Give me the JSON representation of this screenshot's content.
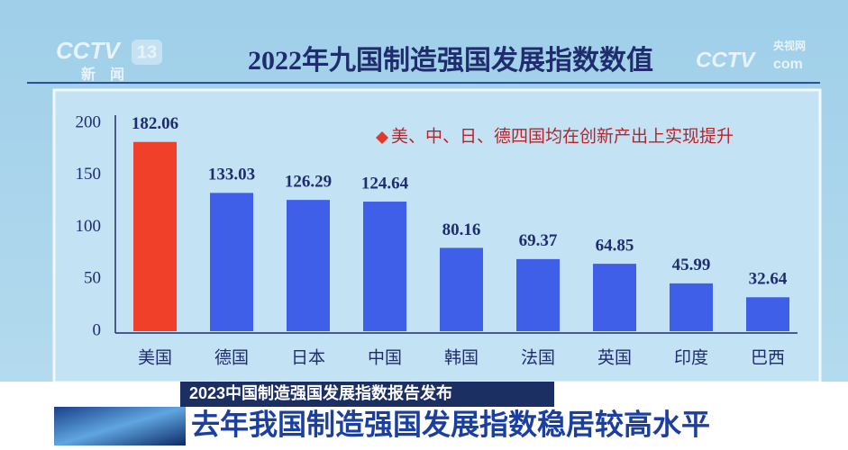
{
  "logo_left": {
    "name": "CCTV",
    "number": "13",
    "label": "新闻"
  },
  "logo_right": {
    "name": "CCTV",
    "suffix": "com",
    "label": "央视网"
  },
  "chart_data": {
    "type": "bar",
    "title": "2022年九国制造强国发展指数数值",
    "annotation": "美、中、日、德四国均在创新产出上实现提升",
    "categories": [
      "美国",
      "德国",
      "日本",
      "中国",
      "韩国",
      "法国",
      "英国",
      "印度",
      "巴西"
    ],
    "values": [
      182.06,
      133.03,
      126.29,
      124.64,
      80.16,
      69.37,
      64.85,
      45.99,
      32.64
    ],
    "colors": [
      "#f0402a",
      "#3f5fe8",
      "#3f5fe8",
      "#3f5fe8",
      "#3f5fe8",
      "#3f5fe8",
      "#3f5fe8",
      "#3f5fe8",
      "#3f5fe8"
    ],
    "ylim": [
      0,
      200
    ],
    "yticks": [
      0,
      50,
      100,
      150,
      200
    ],
    "grid": false
  },
  "banner": {
    "subtitle": "2023中国制造强国发展指数报告发布",
    "headline": "去年我国制造强国发展指数稳居较高水平"
  }
}
